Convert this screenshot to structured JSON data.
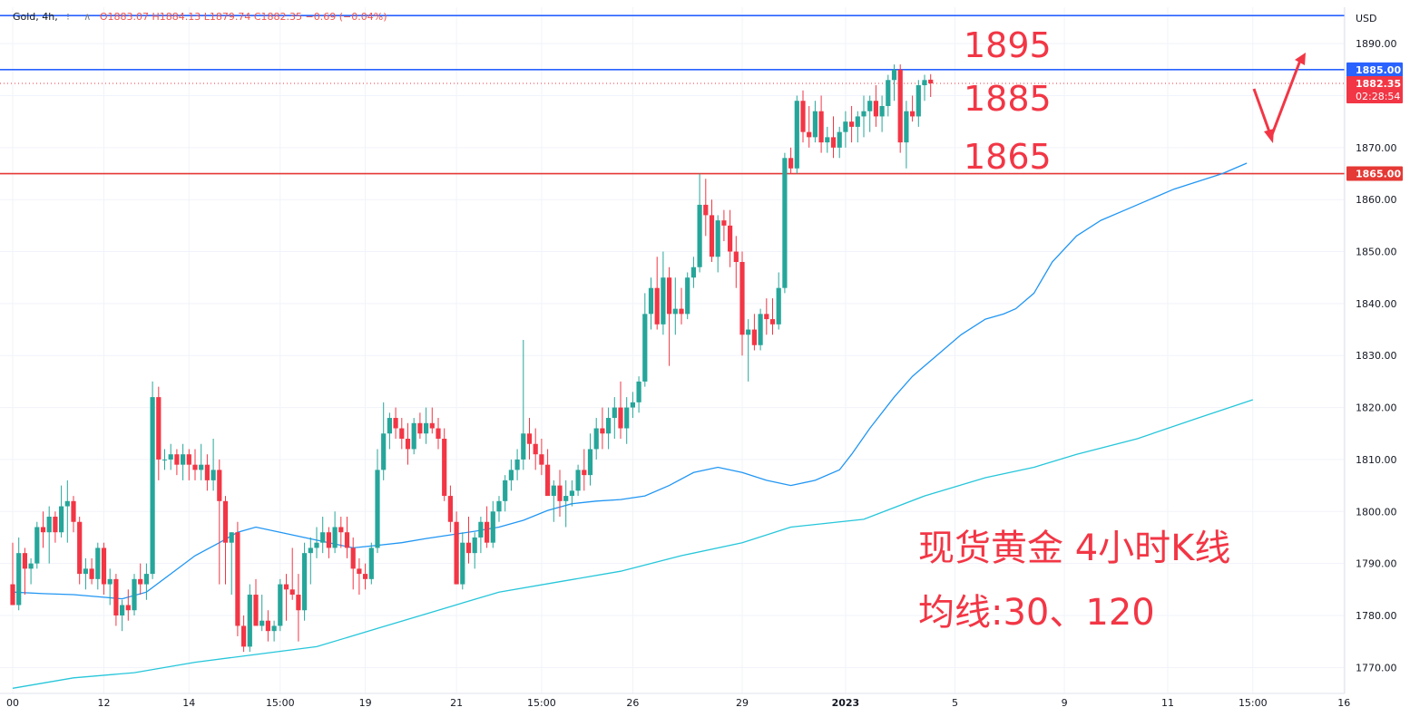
{
  "header": {
    "symbol": "Gold, 4h,",
    "o": "O1883.07",
    "h": "H1884.13",
    "l": "L1879.74",
    "c": "C1882.35",
    "change": "−0.69 (−0.04%)"
  },
  "axis": {
    "currency": "USD"
  },
  "colors": {
    "up": "#26a69a",
    "down": "#f23645",
    "ma30": "#2196f3",
    "ma120": "#26c6da",
    "line_blue": "#2962ff",
    "line_red": "#e53935",
    "annotation": "#f23645"
  },
  "annotations": {
    "levels": [
      "1895",
      "1885",
      "1865"
    ],
    "title_line1": "现货黄金 4小时K线",
    "title_line2": "均线:30、120"
  },
  "chart_data": {
    "type": "candlestick",
    "title": "",
    "y_range": [
      1765,
      1897
    ],
    "y_ticks": [
      1890,
      1880,
      1870,
      1860,
      1850,
      1840,
      1830,
      1820,
      1810,
      1800,
      1790,
      1780,
      1770
    ],
    "x_ticks": [
      {
        "label": "00",
        "index": 0
      },
      {
        "label": "12",
        "index": 15
      },
      {
        "label": "14",
        "index": 29
      },
      {
        "label": "15:00",
        "index": 44
      },
      {
        "label": "19",
        "index": 58
      },
      {
        "label": "21",
        "index": 73
      },
      {
        "label": "15:00",
        "index": 87
      },
      {
        "label": "26",
        "index": 102
      },
      {
        "label": "29",
        "index": 120
      },
      {
        "label": "2023",
        "index": 137
      },
      {
        "label": "5",
        "index": 155
      },
      {
        "label": "9",
        "index": 173
      },
      {
        "label": "11",
        "index": 190
      },
      {
        "label": "15:00",
        "index": 204
      },
      {
        "label": "16",
        "index": 219
      }
    ],
    "x_max_index": 219,
    "price_labels": [
      {
        "value": 1885.0,
        "text": "1885.00",
        "color": "#2962ff"
      },
      {
        "value": 1882.35,
        "text": "1882.35",
        "sub": "02:28:54",
        "color": "#f23645"
      },
      {
        "value": 1865.0,
        "text": "1865.00",
        "color": "#e53935"
      }
    ],
    "horizontal_lines": [
      {
        "value": 1895.4,
        "color": "#2962ff"
      },
      {
        "value": 1885.0,
        "color": "#2962ff"
      },
      {
        "value": 1865.0,
        "color": "#e53935"
      }
    ],
    "current_price": 1882.35,
    "candles": [
      [
        1786,
        1794,
        1782,
        1782
      ],
      [
        1782,
        1795,
        1781,
        1792
      ],
      [
        1792,
        1793,
        1784,
        1789
      ],
      [
        1789,
        1791,
        1786,
        1790
      ],
      [
        1790,
        1798,
        1789,
        1797
      ],
      [
        1797,
        1800,
        1793,
        1796
      ],
      [
        1796,
        1801,
        1790,
        1799
      ],
      [
        1799,
        1800,
        1794,
        1796
      ],
      [
        1796,
        1805,
        1795,
        1801
      ],
      [
        1801,
        1806,
        1794,
        1802
      ],
      [
        1802,
        1803,
        1796,
        1798
      ],
      [
        1798,
        1799,
        1786,
        1788
      ],
      [
        1788,
        1791,
        1785,
        1789
      ],
      [
        1789,
        1791,
        1786,
        1787
      ],
      [
        1787,
        1794,
        1785,
        1793
      ],
      [
        1793,
        1794,
        1784,
        1786
      ],
      [
        1786,
        1789,
        1782,
        1787
      ],
      [
        1787,
        1788,
        1778,
        1780
      ],
      [
        1780,
        1783,
        1777,
        1782
      ],
      [
        1782,
        1785,
        1779,
        1781
      ],
      [
        1781,
        1788,
        1780,
        1787
      ],
      [
        1787,
        1790,
        1784,
        1786
      ],
      [
        1786,
        1790,
        1783,
        1788
      ],
      [
        1788,
        1825,
        1787,
        1822
      ],
      [
        1822,
        1824,
        1806,
        1810
      ],
      [
        1810,
        1812,
        1808,
        1810
      ],
      [
        1810,
        1813,
        1808,
        1811
      ],
      [
        1811,
        1812,
        1807,
        1809
      ],
      [
        1809,
        1813,
        1806,
        1811
      ],
      [
        1811,
        1812,
        1806,
        1809
      ],
      [
        1809,
        1812,
        1806,
        1808
      ],
      [
        1808,
        1813,
        1806,
        1809
      ],
      [
        1809,
        1811,
        1804,
        1806
      ],
      [
        1806,
        1814,
        1804,
        1808
      ],
      [
        1808,
        1810,
        1786,
        1802
      ],
      [
        1802,
        1803,
        1786,
        1794
      ],
      [
        1794,
        1796,
        1784,
        1796
      ],
      [
        1796,
        1798,
        1776,
        1778
      ],
      [
        1778,
        1780,
        1773,
        1774
      ],
      [
        1774,
        1786,
        1773,
        1784
      ],
      [
        1784,
        1787,
        1779,
        1778
      ],
      [
        1778,
        1784,
        1777,
        1779
      ],
      [
        1779,
        1781,
        1775,
        1777
      ],
      [
        1777,
        1779,
        1775,
        1778
      ],
      [
        1778,
        1787,
        1777,
        1786
      ],
      [
        1786,
        1788,
        1779,
        1785
      ],
      [
        1785,
        1793,
        1783,
        1784
      ],
      [
        1784,
        1788,
        1775,
        1781
      ],
      [
        1781,
        1794,
        1779,
        1792
      ],
      [
        1792,
        1795,
        1786,
        1793
      ],
      [
        1793,
        1797,
        1791,
        1794
      ],
      [
        1794,
        1799,
        1792,
        1796
      ],
      [
        1796,
        1797,
        1791,
        1793
      ],
      [
        1793,
        1800,
        1792,
        1797
      ],
      [
        1797,
        1799,
        1793,
        1796
      ],
      [
        1796,
        1799,
        1791,
        1793
      ],
      [
        1793,
        1795,
        1785,
        1789
      ],
      [
        1789,
        1791,
        1784,
        1788
      ],
      [
        1788,
        1790,
        1785,
        1787
      ],
      [
        1787,
        1794,
        1786,
        1793
      ],
      [
        1793,
        1812,
        1792,
        1808
      ],
      [
        1808,
        1821,
        1806,
        1815
      ],
      [
        1815,
        1819,
        1812,
        1818
      ],
      [
        1818,
        1820,
        1814,
        1816
      ],
      [
        1816,
        1818,
        1812,
        1814
      ],
      [
        1814,
        1817,
        1809,
        1812
      ],
      [
        1812,
        1818,
        1811,
        1817
      ],
      [
        1817,
        1819,
        1814,
        1815
      ],
      [
        1815,
        1820,
        1813,
        1817
      ],
      [
        1817,
        1820,
        1815,
        1816
      ],
      [
        1816,
        1818,
        1812,
        1814
      ],
      [
        1814,
        1816,
        1802,
        1803
      ],
      [
        1803,
        1805,
        1796,
        1798
      ],
      [
        1798,
        1800,
        1786,
        1786
      ],
      [
        1786,
        1796,
        1785,
        1794
      ],
      [
        1794,
        1799,
        1790,
        1792
      ],
      [
        1792,
        1796,
        1789,
        1795
      ],
      [
        1795,
        1799,
        1792,
        1798
      ],
      [
        1798,
        1801,
        1793,
        1794
      ],
      [
        1794,
        1802,
        1793,
        1800
      ],
      [
        1800,
        1803,
        1798,
        1802
      ],
      [
        1802,
        1807,
        1800,
        1806
      ],
      [
        1806,
        1810,
        1804,
        1808
      ],
      [
        1808,
        1812,
        1806,
        1810
      ],
      [
        1810,
        1833,
        1808,
        1815
      ],
      [
        1815,
        1818,
        1810,
        1813
      ],
      [
        1813,
        1816,
        1808,
        1811
      ],
      [
        1811,
        1814,
        1807,
        1809
      ],
      [
        1809,
        1812,
        1803,
        1803
      ],
      [
        1803,
        1806,
        1798,
        1805
      ],
      [
        1805,
        1808,
        1799,
        1802
      ],
      [
        1802,
        1806,
        1797,
        1803
      ],
      [
        1803,
        1806,
        1801,
        1804
      ],
      [
        1804,
        1809,
        1803,
        1808
      ],
      [
        1808,
        1812,
        1804,
        1807
      ],
      [
        1807,
        1815,
        1805,
        1812
      ],
      [
        1812,
        1818,
        1810,
        1816
      ],
      [
        1816,
        1820,
        1812,
        1815
      ],
      [
        1815,
        1820,
        1812,
        1818
      ],
      [
        1818,
        1822,
        1814,
        1820
      ],
      [
        1820,
        1825,
        1814,
        1816
      ],
      [
        1816,
        1822,
        1813,
        1820
      ],
      [
        1820,
        1823,
        1818,
        1821
      ],
      [
        1821,
        1826,
        1819,
        1825
      ],
      [
        1825,
        1842,
        1824,
        1838
      ],
      [
        1838,
        1845,
        1835,
        1843
      ],
      [
        1843,
        1849,
        1835,
        1836
      ],
      [
        1836,
        1850,
        1834,
        1845
      ],
      [
        1845,
        1847,
        1828,
        1838
      ],
      [
        1838,
        1845,
        1834,
        1839
      ],
      [
        1839,
        1843,
        1836,
        1838
      ],
      [
        1838,
        1846,
        1837,
        1845
      ],
      [
        1845,
        1849,
        1843,
        1847
      ],
      [
        1847,
        1865,
        1846,
        1859
      ],
      [
        1859,
        1864,
        1853,
        1857
      ],
      [
        1857,
        1860,
        1848,
        1849
      ],
      [
        1849,
        1857,
        1846,
        1856
      ],
      [
        1856,
        1858,
        1852,
        1855
      ],
      [
        1855,
        1858,
        1847,
        1850
      ],
      [
        1850,
        1853,
        1843,
        1848
      ],
      [
        1848,
        1850,
        1830,
        1834
      ],
      [
        1834,
        1837,
        1825,
        1835
      ],
      [
        1835,
        1838,
        1831,
        1832
      ],
      [
        1832,
        1839,
        1831,
        1838
      ],
      [
        1838,
        1841,
        1834,
        1837
      ],
      [
        1837,
        1841,
        1834,
        1836
      ],
      [
        1836,
        1846,
        1835,
        1843
      ],
      [
        1843,
        1869,
        1842,
        1868
      ],
      [
        1868,
        1870,
        1865,
        1866
      ],
      [
        1866,
        1880,
        1865,
        1879
      ],
      [
        1879,
        1881,
        1871,
        1873
      ],
      [
        1873,
        1878,
        1870,
        1872
      ],
      [
        1872,
        1879,
        1871,
        1877
      ],
      [
        1877,
        1880,
        1869,
        1871
      ],
      [
        1871,
        1874,
        1869,
        1872
      ],
      [
        1872,
        1876,
        1868,
        1870
      ],
      [
        1870,
        1874,
        1868,
        1873
      ],
      [
        1873,
        1877,
        1870,
        1875
      ],
      [
        1875,
        1878,
        1871,
        1874
      ],
      [
        1874,
        1877,
        1871,
        1876
      ],
      [
        1876,
        1880,
        1872,
        1877
      ],
      [
        1877,
        1880,
        1873,
        1879
      ],
      [
        1879,
        1882,
        1874,
        1876
      ],
      [
        1876,
        1880,
        1873,
        1878
      ],
      [
        1878,
        1884,
        1876,
        1883
      ],
      [
        1883,
        1886,
        1879,
        1885
      ],
      [
        1885,
        1886,
        1869,
        1871
      ],
      [
        1871,
        1879,
        1866,
        1877
      ],
      [
        1877,
        1880,
        1875,
        1876
      ],
      [
        1876,
        1883,
        1874,
        1882
      ],
      [
        1882,
        1884,
        1879,
        1883
      ],
      [
        1883.07,
        1884.13,
        1879.74,
        1882.35
      ]
    ],
    "ma30": [
      [
        0,
        1784.5
      ],
      [
        5,
        1784.2
      ],
      [
        10,
        1784.0
      ],
      [
        15,
        1783.5
      ],
      [
        18,
        1783.2
      ],
      [
        22,
        1784.5
      ],
      [
        26,
        1788
      ],
      [
        30,
        1791.5
      ],
      [
        34,
        1794
      ],
      [
        37,
        1796
      ],
      [
        40,
        1797
      ],
      [
        44,
        1796
      ],
      [
        48,
        1795
      ],
      [
        52,
        1794
      ],
      [
        56,
        1793
      ],
      [
        60,
        1793.5
      ],
      [
        64,
        1794
      ],
      [
        68,
        1794.8
      ],
      [
        72,
        1795.5
      ],
      [
        76,
        1796.2
      ],
      [
        80,
        1797
      ],
      [
        84,
        1798.3
      ],
      [
        88,
        1800.2
      ],
      [
        92,
        1801.5
      ],
      [
        96,
        1802
      ],
      [
        100,
        1802.3
      ],
      [
        104,
        1803
      ],
      [
        108,
        1805
      ],
      [
        112,
        1807.5
      ],
      [
        116,
        1808.5
      ],
      [
        120,
        1807.5
      ],
      [
        124,
        1806
      ],
      [
        128,
        1805
      ],
      [
        132,
        1806
      ],
      [
        136,
        1808
      ],
      [
        138,
        1811
      ],
      [
        141,
        1816
      ],
      [
        145,
        1822
      ],
      [
        148,
        1826
      ],
      [
        152,
        1830
      ],
      [
        156,
        1834
      ],
      [
        160,
        1837
      ],
      [
        163,
        1838
      ],
      [
        165,
        1839
      ],
      [
        168,
        1842
      ],
      [
        171,
        1848
      ],
      [
        175,
        1853
      ],
      [
        179,
        1856
      ],
      [
        183,
        1858
      ],
      [
        187,
        1860
      ],
      [
        191,
        1862
      ],
      [
        195,
        1863.5
      ],
      [
        199,
        1865
      ],
      [
        203,
        1867
      ]
    ],
    "ma120": [
      [
        0,
        1766
      ],
      [
        10,
        1768
      ],
      [
        20,
        1769
      ],
      [
        30,
        1771
      ],
      [
        40,
        1772.5
      ],
      [
        50,
        1774
      ],
      [
        60,
        1777.5
      ],
      [
        70,
        1781
      ],
      [
        80,
        1784.5
      ],
      [
        90,
        1786.5
      ],
      [
        100,
        1788.5
      ],
      [
        110,
        1791.5
      ],
      [
        120,
        1794
      ],
      [
        128,
        1797
      ],
      [
        132,
        1797.5
      ],
      [
        140,
        1798.5
      ],
      [
        150,
        1803
      ],
      [
        160,
        1806.5
      ],
      [
        168,
        1808.5
      ],
      [
        175,
        1811
      ],
      [
        185,
        1814
      ],
      [
        195,
        1818
      ],
      [
        204,
        1821.5
      ]
    ]
  }
}
